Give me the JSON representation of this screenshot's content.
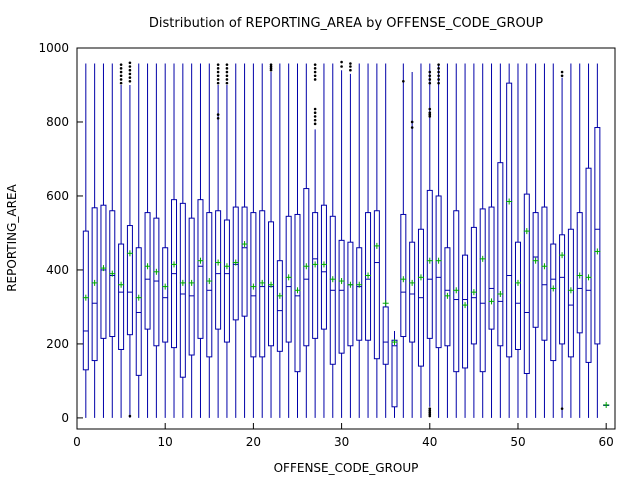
{
  "chart_data": {
    "type": "box",
    "title": "Distribution of REPORTING_AREA by OFFENSE_CODE_GROUP",
    "xlabel": "OFFENSE_CODE_GROUP",
    "ylabel": "REPORTING_AREA",
    "xlim": [
      0,
      61
    ],
    "ylim": [
      -30,
      1000
    ],
    "xticks": [
      0,
      10,
      20,
      30,
      40,
      50,
      60
    ],
    "yticks": [
      0,
      200,
      400,
      600,
      800,
      1000
    ],
    "colors": {
      "box": "#0000a8",
      "mean": "#00a800",
      "outlier": "#000000"
    },
    "groups": [
      {
        "x": 1,
        "min": 0,
        "q1": 130,
        "median": 235,
        "q3": 505,
        "max": 958,
        "mean": 325
      },
      {
        "x": 2,
        "min": 0,
        "q1": 155,
        "median": 310,
        "q3": 568,
        "max": 958,
        "mean": 365
      },
      {
        "x": 3,
        "min": 0,
        "q1": 215,
        "median": 400,
        "q3": 575,
        "max": 958,
        "mean": 405
      },
      {
        "x": 4,
        "min": 0,
        "q1": 220,
        "median": 385,
        "q3": 560,
        "max": 958,
        "mean": 390
      },
      {
        "x": 5,
        "min": 0,
        "q1": 185,
        "median": 340,
        "q3": 470,
        "max": 900,
        "mean": 360,
        "outliers": [
          905,
          915,
          925,
          935,
          945,
          955
        ]
      },
      {
        "x": 6,
        "min": 0,
        "q1": 225,
        "median": 340,
        "q3": 520,
        "max": 900,
        "mean": 445,
        "outliers": [
          5,
          910,
          920,
          930,
          940,
          950,
          960
        ]
      },
      {
        "x": 7,
        "min": 0,
        "q1": 115,
        "median": 285,
        "q3": 460,
        "max": 958,
        "mean": 325
      },
      {
        "x": 8,
        "min": 0,
        "q1": 240,
        "median": 375,
        "q3": 555,
        "max": 958,
        "mean": 410
      },
      {
        "x": 9,
        "min": 0,
        "q1": 195,
        "median": 370,
        "q3": 540,
        "max": 958,
        "mean": 395
      },
      {
        "x": 10,
        "min": 0,
        "q1": 205,
        "median": 325,
        "q3": 460,
        "max": 958,
        "mean": 355
      },
      {
        "x": 11,
        "min": 0,
        "q1": 190,
        "median": 390,
        "q3": 590,
        "max": 958,
        "mean": 415
      },
      {
        "x": 12,
        "min": 0,
        "q1": 110,
        "median": 335,
        "q3": 580,
        "max": 958,
        "mean": 365
      },
      {
        "x": 13,
        "min": 0,
        "q1": 170,
        "median": 330,
        "q3": 540,
        "max": 958,
        "mean": 365
      },
      {
        "x": 14,
        "min": 0,
        "q1": 215,
        "median": 410,
        "q3": 590,
        "max": 958,
        "mean": 425
      },
      {
        "x": 15,
        "min": 0,
        "q1": 165,
        "median": 345,
        "q3": 555,
        "max": 958,
        "mean": 370
      },
      {
        "x": 16,
        "min": 0,
        "q1": 240,
        "median": 390,
        "q3": 560,
        "max": 900,
        "mean": 420,
        "outliers": [
          810,
          820,
          905,
          915,
          925,
          935,
          945,
          955
        ]
      },
      {
        "x": 17,
        "min": 0,
        "q1": 205,
        "median": 390,
        "q3": 535,
        "max": 900,
        "mean": 410,
        "outliers": [
          905,
          915,
          925,
          935,
          945,
          955
        ]
      },
      {
        "x": 18,
        "min": 0,
        "q1": 265,
        "median": 415,
        "q3": 570,
        "max": 958,
        "mean": 420
      },
      {
        "x": 19,
        "min": 0,
        "q1": 275,
        "median": 460,
        "q3": 570,
        "max": 958,
        "mean": 470
      },
      {
        "x": 20,
        "min": 0,
        "q1": 165,
        "median": 330,
        "q3": 555,
        "max": 958,
        "mean": 355
      },
      {
        "x": 21,
        "min": 0,
        "q1": 165,
        "median": 355,
        "q3": 560,
        "max": 958,
        "mean": 365
      },
      {
        "x": 22,
        "min": 0,
        "q1": 195,
        "median": 355,
        "q3": 530,
        "max": 935,
        "mean": 360,
        "outliers": [
          940,
          945,
          950,
          955
        ]
      },
      {
        "x": 23,
        "min": 0,
        "q1": 180,
        "median": 290,
        "q3": 425,
        "max": 958,
        "mean": 330
      },
      {
        "x": 24,
        "min": 0,
        "q1": 205,
        "median": 355,
        "q3": 545,
        "max": 958,
        "mean": 380
      },
      {
        "x": 25,
        "min": 0,
        "q1": 125,
        "median": 330,
        "q3": 550,
        "max": 958,
        "mean": 345
      },
      {
        "x": 26,
        "min": 0,
        "q1": 195,
        "median": 375,
        "q3": 620,
        "max": 958,
        "mean": 410
      },
      {
        "x": 27,
        "min": 0,
        "q1": 215,
        "median": 430,
        "q3": 555,
        "max": 780,
        "mean": 415,
        "outliers": [
          795,
          805,
          815,
          825,
          835,
          915,
          925,
          935,
          945,
          955
        ]
      },
      {
        "x": 28,
        "min": 0,
        "q1": 240,
        "median": 395,
        "q3": 575,
        "max": 958,
        "mean": 415
      },
      {
        "x": 29,
        "min": 0,
        "q1": 145,
        "median": 345,
        "q3": 545,
        "max": 958,
        "mean": 375
      },
      {
        "x": 30,
        "min": 0,
        "q1": 175,
        "median": 345,
        "q3": 480,
        "max": 940,
        "mean": 370,
        "outliers": [
          950,
          962
        ]
      },
      {
        "x": 31,
        "min": 0,
        "q1": 195,
        "median": 360,
        "q3": 475,
        "max": 930,
        "mean": 360,
        "outliers": [
          940,
          950,
          958
        ]
      },
      {
        "x": 32,
        "min": 0,
        "q1": 210,
        "median": 355,
        "q3": 460,
        "max": 958,
        "mean": 360
      },
      {
        "x": 33,
        "min": 0,
        "q1": 210,
        "median": 375,
        "q3": 555,
        "max": 958,
        "mean": 385
      },
      {
        "x": 34,
        "min": 0,
        "q1": 160,
        "median": 420,
        "q3": 560,
        "max": 958,
        "mean": 465
      },
      {
        "x": 35,
        "min": 0,
        "q1": 145,
        "median": 205,
        "q3": 300,
        "max": 958,
        "mean": 310
      },
      {
        "x": 36,
        "min": 0,
        "q1": 30,
        "median": 195,
        "q3": 210,
        "max": 235,
        "mean": 205
      },
      {
        "x": 37,
        "min": 0,
        "q1": 220,
        "median": 340,
        "q3": 550,
        "max": 958,
        "mean": 375,
        "outliers": [
          910
        ]
      },
      {
        "x": 38,
        "min": 0,
        "q1": 205,
        "median": 335,
        "q3": 475,
        "max": 935,
        "mean": 365,
        "outliers": [
          785,
          800
        ]
      },
      {
        "x": 39,
        "min": 0,
        "q1": 140,
        "median": 325,
        "q3": 510,
        "max": 958,
        "mean": 380
      },
      {
        "x": 40,
        "min": 30,
        "q1": 215,
        "median": 375,
        "q3": 615,
        "max": 958,
        "mean": 425,
        "outliers": [
          5,
          10,
          15,
          20,
          25,
          815,
          820,
          825,
          835,
          905,
          915,
          925,
          935
        ]
      },
      {
        "x": 41,
        "min": 0,
        "q1": 190,
        "median": 380,
        "q3": 600,
        "max": 958,
        "mean": 425,
        "outliers": [
          905,
          915,
          925,
          935,
          945,
          955
        ]
      },
      {
        "x": 42,
        "min": 0,
        "q1": 195,
        "median": 345,
        "q3": 460,
        "max": 958,
        "mean": 330
      },
      {
        "x": 43,
        "min": 0,
        "q1": 125,
        "median": 320,
        "q3": 560,
        "max": 958,
        "mean": 345
      },
      {
        "x": 44,
        "min": 0,
        "q1": 135,
        "median": 320,
        "q3": 440,
        "max": 958,
        "mean": 305
      },
      {
        "x": 45,
        "min": 0,
        "q1": 200,
        "median": 325,
        "q3": 515,
        "max": 958,
        "mean": 340
      },
      {
        "x": 46,
        "min": 0,
        "q1": 125,
        "median": 310,
        "q3": 565,
        "max": 958,
        "mean": 430
      },
      {
        "x": 47,
        "min": 0,
        "q1": 240,
        "median": 350,
        "q3": 570,
        "max": 958,
        "mean": 315
      },
      {
        "x": 48,
        "min": 0,
        "q1": 195,
        "median": 315,
        "q3": 690,
        "max": 958,
        "mean": 335
      },
      {
        "x": 49,
        "min": 0,
        "q1": 165,
        "median": 385,
        "q3": 905,
        "max": 958,
        "mean": 585
      },
      {
        "x": 50,
        "min": 0,
        "q1": 185,
        "median": 310,
        "q3": 475,
        "max": 958,
        "mean": 365
      },
      {
        "x": 51,
        "min": 0,
        "q1": 120,
        "median": 285,
        "q3": 605,
        "max": 958,
        "mean": 505
      },
      {
        "x": 52,
        "min": 0,
        "q1": 245,
        "median": 435,
        "q3": 555,
        "max": 958,
        "mean": 425
      },
      {
        "x": 53,
        "min": 0,
        "q1": 210,
        "median": 360,
        "q3": 570,
        "max": 958,
        "mean": 410
      },
      {
        "x": 54,
        "min": 0,
        "q1": 155,
        "median": 375,
        "q3": 470,
        "max": 958,
        "mean": 350
      },
      {
        "x": 55,
        "min": 0,
        "q1": 200,
        "median": 380,
        "q3": 495,
        "max": 920,
        "mean": 440,
        "outliers": [
          25,
          925,
          935
        ]
      },
      {
        "x": 56,
        "min": 0,
        "q1": 165,
        "median": 305,
        "q3": 510,
        "max": 958,
        "mean": 345
      },
      {
        "x": 57,
        "min": 0,
        "q1": 230,
        "median": 350,
        "q3": 555,
        "max": 958,
        "mean": 385
      },
      {
        "x": 58,
        "min": 0,
        "q1": 150,
        "median": 345,
        "q3": 675,
        "max": 958,
        "mean": 380
      },
      {
        "x": 59,
        "min": 0,
        "q1": 200,
        "median": 510,
        "q3": 785,
        "max": 958,
        "mean": 450
      },
      {
        "x": 60,
        "min": 35,
        "q1": 35,
        "median": 35,
        "q3": 35,
        "max": 35,
        "mean": 35
      }
    ]
  }
}
